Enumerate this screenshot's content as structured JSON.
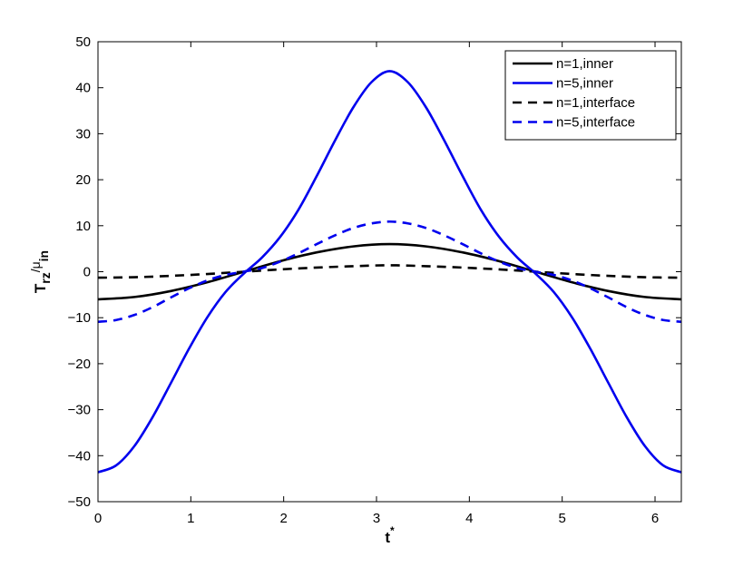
{
  "chart_data": {
    "type": "line",
    "xlabel": {
      "main": "t",
      "sup": "*"
    },
    "ylabel": {
      "main": "T",
      "main_sub": "rz",
      "div": "/μ",
      "div_sub": "in"
    },
    "xlim": [
      0,
      6.2832
    ],
    "ylim": [
      -50,
      50
    ],
    "xticks": [
      0,
      1,
      2,
      3,
      4,
      5,
      6
    ],
    "yticks": [
      -50,
      -40,
      -30,
      -20,
      -10,
      0,
      10,
      20,
      30,
      40,
      50
    ],
    "grid": false,
    "legend_position": "top-right",
    "series": [
      {
        "name": "n=1,inner",
        "color": "#000000",
        "dash": "solid",
        "x": [
          0,
          0.3927,
          0.7854,
          1.1781,
          1.5708,
          1.9635,
          2.3562,
          2.7489,
          3.1416,
          3.5343,
          3.927,
          4.3197,
          4.7124,
          5.1051,
          5.4978,
          5.8905,
          6.2832
        ],
        "y": [
          -6.0,
          -5.5,
          -4.2,
          -2.3,
          0,
          2.3,
          4.2,
          5.5,
          6.0,
          5.5,
          4.2,
          2.3,
          0,
          -2.3,
          -4.2,
          -5.5,
          -6.0
        ]
      },
      {
        "name": "n=5,inner",
        "color": "#0000ee",
        "dash": "solid",
        "x": [
          0,
          0.1963,
          0.3927,
          0.589,
          0.7854,
          0.9817,
          1.1781,
          1.3744,
          1.5708,
          1.7671,
          1.9635,
          2.1598,
          2.3562,
          2.5525,
          2.7489,
          2.9452,
          3.1416,
          3.3379,
          3.5343,
          3.7306,
          3.927,
          4.1233,
          4.3197,
          4.516,
          4.7124,
          4.9087,
          5.1051,
          5.3014,
          5.4978,
          5.6941,
          5.8905,
          6.0868,
          6.2832
        ],
        "y": [
          -43.6,
          -42.1,
          -37.9,
          -31.6,
          -24.2,
          -16.7,
          -9.9,
          -4.4,
          -0.4,
          3.1,
          7.6,
          13.5,
          20.8,
          28.5,
          35.7,
          41.2,
          43.6,
          41.2,
          35.7,
          28.5,
          20.8,
          13.5,
          7.6,
          3.1,
          -0.4,
          -4.4,
          -9.9,
          -16.7,
          -24.2,
          -31.6,
          -37.9,
          -42.1,
          -43.6
        ]
      },
      {
        "name": "n=1,interface",
        "color": "#000000",
        "dash": "dashed",
        "x": [
          0,
          0.3927,
          0.7854,
          1.1781,
          1.5708,
          1.9635,
          2.3562,
          2.7489,
          3.1416,
          3.5343,
          3.927,
          4.3197,
          4.7124,
          5.1051,
          5.4978,
          5.8905,
          6.2832
        ],
        "y": [
          -1.3,
          -1.2,
          -0.9,
          -0.5,
          0,
          0.5,
          0.9,
          1.2,
          1.4,
          1.2,
          0.9,
          0.5,
          0,
          -0.5,
          -0.9,
          -1.2,
          -1.3
        ]
      },
      {
        "name": "n=5,interface",
        "color": "#0000ee",
        "dash": "dashed",
        "x": [
          0,
          0.1963,
          0.3927,
          0.589,
          0.7854,
          0.9817,
          1.1781,
          1.3744,
          1.5708,
          1.7671,
          1.9635,
          2.1598,
          2.3562,
          2.5525,
          2.7489,
          2.9452,
          3.1416,
          3.3379,
          3.5343,
          3.7306,
          3.927,
          4.1233,
          4.3197,
          4.516,
          4.7124,
          4.9087,
          5.1051,
          5.3014,
          5.4978,
          5.6941,
          5.8905,
          6.0868,
          6.2832
        ],
        "y": [
          -10.9,
          -10.5,
          -9.4,
          -7.7,
          -5.6,
          -3.6,
          -1.9,
          -0.7,
          0,
          0.8,
          2.2,
          4.0,
          6.0,
          7.9,
          9.5,
          10.5,
          10.9,
          10.5,
          9.5,
          7.9,
          6.0,
          4.0,
          2.2,
          0.8,
          0,
          -0.7,
          -1.9,
          -3.6,
          -5.6,
          -7.7,
          -9.4,
          -10.5,
          -10.9
        ]
      }
    ]
  }
}
